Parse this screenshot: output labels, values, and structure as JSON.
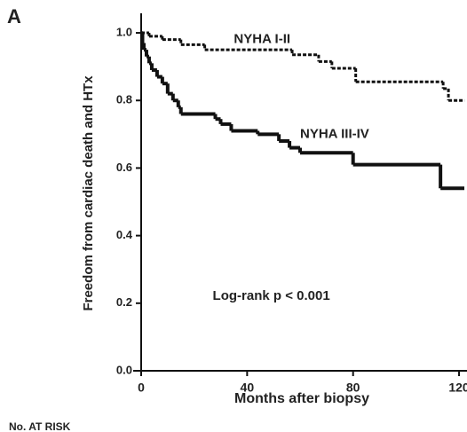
{
  "chart_data": {
    "type": "step",
    "panel_label": "A",
    "ylabel": "Freedom from cardiac death and HTx",
    "xlabel": "Months after biopsy",
    "footer": "No. AT RISK",
    "annotations": [
      {
        "text": "NYHA I-II",
        "x": 35,
        "y": 0.98
      },
      {
        "text": "NYHA III-IV",
        "x": 60,
        "y": 0.7
      },
      {
        "text": "Log-rank p < 0.001",
        "x": 27,
        "y": 0.22
      }
    ],
    "xlim": [
      0,
      122
    ],
    "ylim": [
      0,
      1.05
    ],
    "xticks": [
      0,
      40,
      80,
      120
    ],
    "yticks": [
      {
        "value": 0,
        "label": "0.0"
      },
      0.2,
      0.4,
      0.6,
      0.8,
      {
        "value": 1,
        "label": "1.0"
      }
    ],
    "series": [
      {
        "color": "#111111",
        "line_style": "dotted",
        "x": [
          0,
          3,
          8,
          15,
          24,
          57,
          67,
          72,
          81,
          114,
          116,
          122
        ],
        "values": [
          1.0,
          0.99,
          0.98,
          0.965,
          0.95,
          0.935,
          0.915,
          0.895,
          0.855,
          0.835,
          0.8,
          0.8
        ]
      },
      {
        "color": "#111111",
        "line_style": "solid",
        "x": [
          0,
          0.5,
          1,
          2,
          3,
          4,
          6,
          8,
          10,
          12,
          14,
          15,
          28,
          30,
          34,
          44,
          52,
          56,
          60,
          80,
          113,
          122
        ],
        "values": [
          1.0,
          0.97,
          0.95,
          0.93,
          0.91,
          0.89,
          0.87,
          0.85,
          0.82,
          0.8,
          0.78,
          0.76,
          0.745,
          0.73,
          0.71,
          0.7,
          0.68,
          0.66,
          0.645,
          0.61,
          0.54,
          0.54
        ]
      }
    ]
  }
}
